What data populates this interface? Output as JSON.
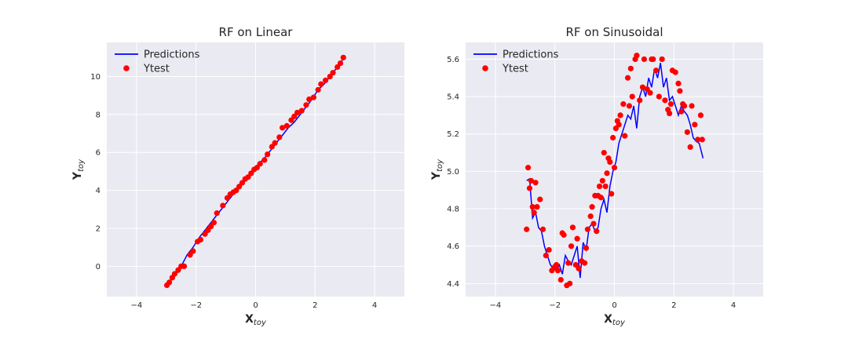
{
  "chart_data": [
    {
      "type": "line+scatter",
      "title": "RF on Linear",
      "xlabel": "X",
      "xlabel_sub": "toy",
      "ylabel": "Y",
      "ylabel_sub": "toy",
      "xlim": [
        -5,
        5
      ],
      "ylim": [
        -1.6,
        11.8
      ],
      "xticks": [
        -4,
        -2,
        0,
        2,
        4
      ],
      "yticks": [
        0,
        2,
        4,
        6,
        8,
        10
      ],
      "grid": true,
      "legend": "top-left",
      "series": [
        {
          "name": "Predictions",
          "type": "line",
          "color": "#0000ff",
          "x": [
            -2.98,
            -2.85,
            -2.7,
            -2.5,
            -2.3,
            -2.1,
            -1.9,
            -1.7,
            -1.5,
            -1.3,
            -1.1,
            -0.9,
            -0.7,
            -0.5,
            -0.3,
            -0.1,
            0.1,
            0.3,
            0.5,
            0.7,
            0.9,
            1.1,
            1.3,
            1.5,
            1.7,
            1.9,
            2.1,
            2.3,
            2.5,
            2.7,
            2.98
          ],
          "y": [
            -1.0,
            -0.75,
            -0.5,
            0.0,
            0.6,
            1.0,
            1.5,
            1.9,
            2.3,
            2.7,
            3.1,
            3.5,
            3.9,
            4.3,
            4.6,
            5.0,
            5.4,
            5.7,
            6.1,
            6.5,
            6.9,
            7.3,
            7.6,
            8.0,
            8.4,
            8.8,
            9.3,
            9.6,
            10.0,
            10.4,
            11.0
          ]
        },
        {
          "name": "Ytest",
          "type": "scatter",
          "color": "#ff0000",
          "x": [
            -2.98,
            -2.9,
            -2.8,
            -2.72,
            -2.6,
            -2.5,
            -2.4,
            -2.2,
            -2.1,
            -1.95,
            -1.85,
            -1.7,
            -1.6,
            -1.5,
            -1.4,
            -1.3,
            -1.1,
            -0.95,
            -0.85,
            -0.75,
            -0.65,
            -0.55,
            -0.45,
            -0.35,
            -0.25,
            -0.15,
            -0.05,
            0.05,
            0.15,
            0.3,
            0.4,
            0.55,
            0.65,
            0.8,
            0.9,
            1.05,
            1.2,
            1.3,
            1.4,
            1.55,
            1.7,
            1.8,
            1.95,
            2.1,
            2.2,
            2.35,
            2.5,
            2.6,
            2.75,
            2.85,
            2.95
          ],
          "y": [
            -1.0,
            -0.85,
            -0.6,
            -0.4,
            -0.2,
            0.0,
            0.0,
            0.6,
            0.8,
            1.3,
            1.4,
            1.7,
            1.9,
            2.1,
            2.3,
            2.8,
            3.2,
            3.6,
            3.8,
            3.9,
            4.0,
            4.2,
            4.4,
            4.6,
            4.7,
            4.9,
            5.1,
            5.2,
            5.4,
            5.6,
            5.9,
            6.3,
            6.5,
            6.8,
            7.3,
            7.4,
            7.7,
            7.9,
            8.1,
            8.2,
            8.5,
            8.8,
            8.9,
            9.3,
            9.6,
            9.8,
            10.0,
            10.2,
            10.5,
            10.7,
            11.0
          ]
        }
      ]
    },
    {
      "type": "line+scatter",
      "title": "RF on Sinusoidal",
      "xlabel": "X",
      "xlabel_sub": "toy",
      "ylabel": "Y",
      "ylabel_sub": "toy",
      "xlim": [
        -5,
        5
      ],
      "ylim": [
        4.33,
        5.69
      ],
      "xticks": [
        -4,
        -2,
        0,
        2,
        4
      ],
      "yticks": [
        4.4,
        4.6,
        4.8,
        5.0,
        5.2,
        5.4,
        5.6
      ],
      "grid": true,
      "legend": "top-left",
      "series": [
        {
          "name": "Predictions",
          "type": "line",
          "color": "#0000ff",
          "x": [
            -2.95,
            -2.85,
            -2.75,
            -2.65,
            -2.55,
            -2.45,
            -2.35,
            -2.25,
            -2.15,
            -2.05,
            -1.95,
            -1.85,
            -1.75,
            -1.65,
            -1.55,
            -1.45,
            -1.35,
            -1.25,
            -1.15,
            -1.05,
            -0.95,
            -0.85,
            -0.75,
            -0.65,
            -0.55,
            -0.45,
            -0.35,
            -0.25,
            -0.15,
            -0.05,
            0.05,
            0.15,
            0.25,
            0.35,
            0.45,
            0.55,
            0.65,
            0.75,
            0.85,
            0.95,
            1.05,
            1.15,
            1.25,
            1.35,
            1.45,
            1.55,
            1.65,
            1.75,
            1.85,
            1.95,
            2.05,
            2.15,
            2.25,
            2.35,
            2.45,
            2.55,
            2.65,
            2.75,
            2.85,
            2.98
          ],
          "y": [
            4.95,
            4.96,
            4.75,
            4.78,
            4.7,
            4.68,
            4.6,
            4.55,
            4.5,
            4.48,
            4.47,
            4.5,
            4.45,
            4.55,
            4.52,
            4.5,
            4.55,
            4.6,
            4.43,
            4.62,
            4.58,
            4.7,
            4.72,
            4.68,
            4.7,
            4.8,
            4.85,
            4.78,
            4.92,
            5.0,
            5.05,
            5.15,
            5.2,
            5.25,
            5.3,
            5.28,
            5.35,
            5.23,
            5.4,
            5.45,
            5.4,
            5.5,
            5.45,
            5.55,
            5.5,
            5.58,
            5.45,
            5.5,
            5.38,
            5.4,
            5.35,
            5.3,
            5.35,
            5.32,
            5.3,
            5.25,
            5.18,
            5.16,
            5.15,
            5.07
          ]
        },
        {
          "name": "Ytest",
          "type": "scatter",
          "color": "#ff0000",
          "x": [
            -2.95,
            -2.9,
            -2.85,
            -2.8,
            -2.75,
            -2.7,
            -2.65,
            -2.6,
            -2.5,
            -2.4,
            -2.3,
            -2.2,
            -2.1,
            -2.0,
            -1.95,
            -1.9,
            -1.8,
            -1.75,
            -1.7,
            -1.6,
            -1.55,
            -1.5,
            -1.45,
            -1.4,
            -1.3,
            -1.25,
            -1.2,
            -1.1,
            -1.0,
            -0.95,
            -0.9,
            -0.8,
            -0.75,
            -0.7,
            -0.65,
            -0.6,
            -0.55,
            -0.5,
            -0.45,
            -0.4,
            -0.35,
            -0.3,
            -0.25,
            -0.2,
            -0.15,
            -0.1,
            -0.05,
            0.0,
            0.05,
            0.1,
            0.15,
            0.2,
            0.3,
            0.35,
            0.45,
            0.5,
            0.55,
            0.6,
            0.7,
            0.75,
            0.85,
            0.95,
            1.0,
            1.1,
            1.2,
            1.25,
            1.3,
            1.4,
            1.5,
            1.6,
            1.7,
            1.8,
            1.85,
            1.9,
            1.95,
            2.05,
            2.15,
            2.2,
            2.25,
            2.3,
            2.35,
            2.45,
            2.55,
            2.6,
            2.7,
            2.8,
            2.9,
            2.95
          ],
          "y": [
            4.69,
            5.02,
            4.91,
            4.95,
            4.81,
            4.78,
            4.94,
            4.81,
            4.85,
            4.69,
            4.55,
            4.58,
            4.47,
            4.49,
            4.5,
            4.47,
            4.42,
            4.67,
            4.66,
            4.39,
            4.51,
            4.4,
            4.6,
            4.7,
            4.5,
            4.64,
            4.48,
            4.52,
            4.51,
            4.59,
            4.69,
            4.76,
            4.81,
            4.72,
            4.87,
            4.68,
            4.87,
            4.92,
            4.86,
            4.95,
            5.1,
            4.92,
            4.99,
            5.07,
            5.05,
            4.88,
            5.18,
            5.02,
            5.23,
            5.27,
            5.25,
            5.3,
            5.36,
            5.19,
            5.5,
            5.35,
            5.55,
            5.4,
            5.6,
            5.62,
            5.38,
            5.45,
            5.6,
            5.44,
            5.42,
            5.6,
            5.6,
            5.54,
            5.4,
            5.6,
            5.38,
            5.33,
            5.31,
            5.36,
            5.54,
            5.53,
            5.47,
            5.43,
            5.32,
            5.36,
            5.35,
            5.21,
            5.13,
            5.35,
            5.25,
            5.17,
            5.3,
            5.17
          ]
        }
      ]
    }
  ]
}
